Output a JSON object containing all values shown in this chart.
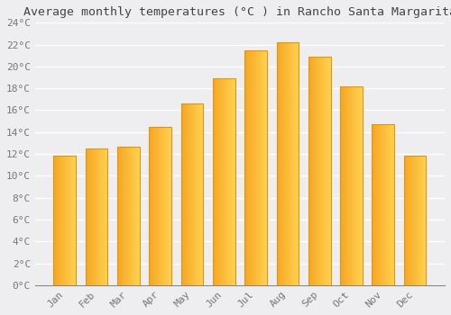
{
  "title": "Average monthly temperatures (°C ) in Rancho Santa Margarita",
  "months": [
    "Jan",
    "Feb",
    "Mar",
    "Apr",
    "May",
    "Jun",
    "Jul",
    "Aug",
    "Sep",
    "Oct",
    "Nov",
    "Dec"
  ],
  "values": [
    11.8,
    12.5,
    12.7,
    14.5,
    16.6,
    18.9,
    21.5,
    22.2,
    20.9,
    18.2,
    14.7,
    11.8
  ],
  "bar_color_left": "#F5A623",
  "bar_color_right": "#FFD060",
  "bar_edge_color": "#E8940A",
  "ylim": [
    0,
    24
  ],
  "yticks": [
    0,
    2,
    4,
    6,
    8,
    10,
    12,
    14,
    16,
    18,
    20,
    22,
    24
  ],
  "ytick_labels": [
    "0°C",
    "2°C",
    "4°C",
    "6°C",
    "8°C",
    "10°C",
    "12°C",
    "14°C",
    "16°C",
    "18°C",
    "20°C",
    "22°C",
    "24°C"
  ],
  "background_color": "#eeeef0",
  "plot_bg_color": "#eeeef0",
  "grid_color": "#ffffff",
  "title_fontsize": 9.5,
  "tick_fontsize": 8,
  "font_family": "monospace",
  "tick_color": "#777777"
}
